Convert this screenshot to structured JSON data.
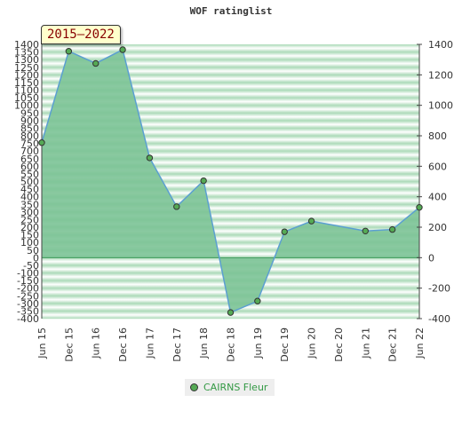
{
  "chart_data": {
    "type": "area",
    "title": "WOF ratinglist",
    "badge": "2015–2022",
    "x": [
      "Jun 15",
      "Dec 15",
      "Jun 16",
      "Dec 16",
      "Jun 17",
      "Dec 17",
      "Jun 18",
      "Dec 18",
      "Jun 19",
      "Dec 19",
      "Jun 20",
      "Dec 20",
      "Jun 21",
      "Dec 21",
      "Jun 22"
    ],
    "series": [
      {
        "name": "CAIRNS Fleur",
        "values": [
          755,
          1355,
          1275,
          1365,
          655,
          335,
          505,
          -360,
          -285,
          170,
          240,
          null,
          175,
          185,
          330
        ]
      }
    ],
    "left_axis": {
      "ylim": [
        -400,
        1400
      ],
      "ticks": [
        1400,
        1350,
        1300,
        1250,
        1200,
        1150,
        1100,
        1050,
        1000,
        950,
        900,
        850,
        800,
        750,
        700,
        650,
        600,
        550,
        500,
        450,
        400,
        350,
        300,
        250,
        200,
        150,
        100,
        50,
        0,
        -50,
        -100,
        -150,
        -200,
        -250,
        -300,
        -350,
        -400
      ]
    },
    "right_axis": {
      "ylim": [
        -400,
        1400
      ],
      "ticks": [
        1400,
        1200,
        1000,
        800,
        600,
        400,
        200,
        0,
        -200,
        -400
      ]
    },
    "legend_placement": "bottom-center",
    "colors": {
      "fill": "#7cc396",
      "line": "#5b9fd1",
      "marker": "#55aa55",
      "legend_text": "#339944"
    }
  }
}
